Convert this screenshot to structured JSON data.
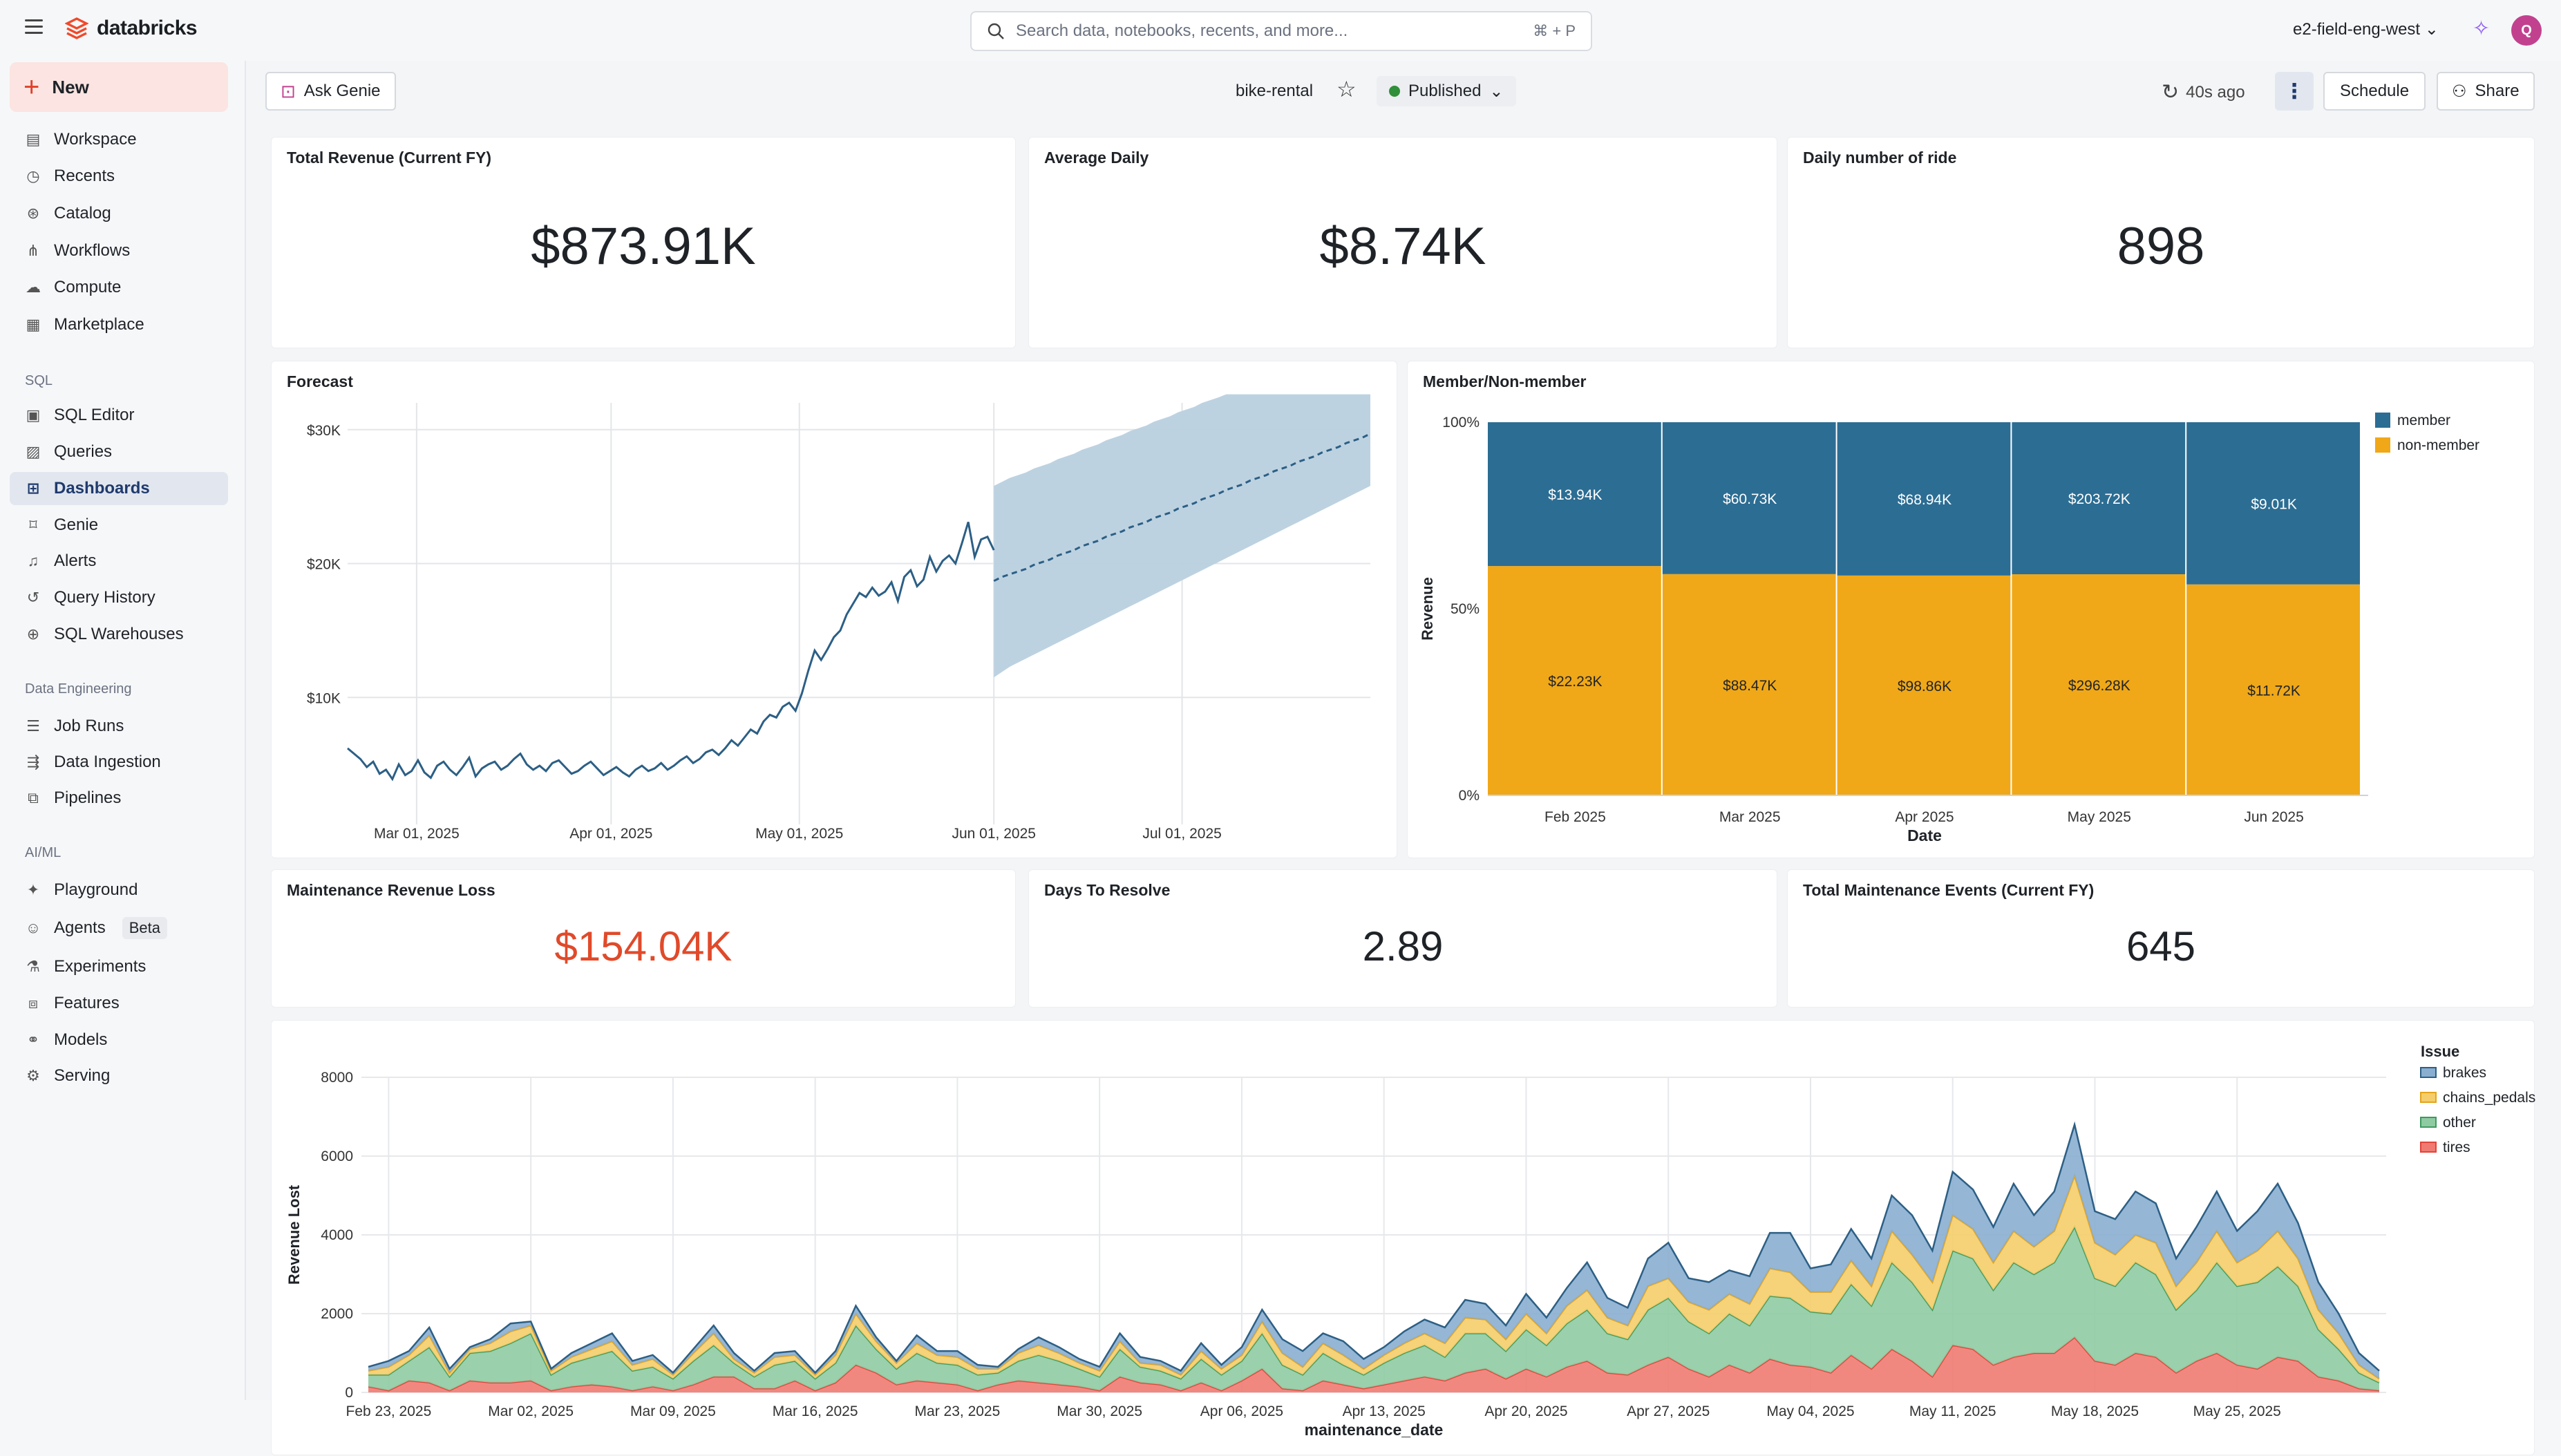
{
  "topbar": {
    "brand": "databricks",
    "search_placeholder": "Search data, notebooks, recents, and more...",
    "search_shortcut": "⌘ + P",
    "workspace": "e2-field-eng-west",
    "avatar_initial": "Q"
  },
  "sidebar": {
    "new_label": "New",
    "items_top": [
      "Workspace",
      "Recents",
      "Catalog",
      "Workflows",
      "Compute",
      "Marketplace"
    ],
    "sql_section": "SQL",
    "items_sql": [
      "SQL Editor",
      "Queries",
      "Dashboards",
      "Genie",
      "Alerts",
      "Query History",
      "SQL Warehouses"
    ],
    "de_section": "Data Engineering",
    "items_de": [
      "Job Runs",
      "Data Ingestion",
      "Pipelines"
    ],
    "ml_section": "AI/ML",
    "items_ml": [
      "Playground",
      "Agents",
      "Experiments",
      "Features",
      "Models",
      "Serving"
    ],
    "beta_badge": "Beta"
  },
  "toolbar": {
    "ask_genie": "Ask Genie",
    "dashboard_name": "bike-rental",
    "status": "Published",
    "refreshed": "40s ago",
    "schedule": "Schedule",
    "share": "Share"
  },
  "kpis": [
    {
      "title": "Total Revenue (Current FY)",
      "value": "$873.91K"
    },
    {
      "title": "Average Daily",
      "value": "$8.74K"
    },
    {
      "title": "Daily number of ride",
      "value": "898"
    },
    {
      "title": "Maintenance Revenue Loss",
      "value": "$154.04K",
      "color": "#e04a2a"
    },
    {
      "title": "Days To Resolve",
      "value": "2.89"
    },
    {
      "title": "Total Maintenance Events (Current FY)",
      "value": "645"
    }
  ],
  "colors": {
    "member": "#2c6d93",
    "nonmember": "#f0a818",
    "forecast_line": "#2c5f85",
    "forecast_band": "#b9d0df",
    "tires": "#f07b72",
    "other": "#8fcba2",
    "chains_pedals": "#f5cd6a",
    "brakes": "#8aaed0"
  },
  "chart_data": [
    {
      "type": "line",
      "title": "Forecast",
      "xlabel": "",
      "ylabel": "",
      "x_ticks": [
        "Mar 01, 2025",
        "Apr 01, 2025",
        "May 01, 2025",
        "Jun 01, 2025",
        "Jul 01, 2025"
      ],
      "y_ticks": [
        "$10K",
        "$20K",
        "$30K"
      ],
      "ylim": [
        0,
        32000
      ],
      "x_start": "2025-02-18",
      "actual": [
        6200,
        5800,
        5400,
        4800,
        5200,
        4300,
        4600,
        3900,
        5000,
        4200,
        4500,
        5300,
        4400,
        4000,
        4900,
        5200,
        4600,
        4200,
        4800,
        5500,
        4100,
        4700,
        5000,
        5200,
        4600,
        4900,
        5400,
        5800,
        5000,
        4600,
        4900,
        4500,
        5100,
        5300,
        4800,
        4300,
        4500,
        4900,
        5200,
        4700,
        4200,
        4500,
        4800,
        4400,
        4100,
        4600,
        4900,
        4500,
        4700,
        5100,
        4600,
        4900,
        5300,
        5600,
        5100,
        5400,
        5900,
        6100,
        5700,
        6200,
        6800,
        6400,
        7000,
        7600,
        7300,
        8200,
        8700,
        8500,
        9300,
        9600,
        9000,
        10300,
        12000,
        13500,
        12800,
        13600,
        14500,
        15000,
        16200,
        17000,
        17800,
        17500,
        18200,
        17600,
        17900,
        18600,
        17200,
        19000,
        19500,
        18300,
        18800,
        20500,
        19400,
        20200,
        20600,
        20000,
        21500,
        23100,
        20500,
        21800,
        22000,
        21000
      ],
      "forecast": {
        "x_start": "2025-06-01",
        "mean": [
          18700,
          19000,
          19200,
          19400,
          19600,
          19900,
          20100,
          20300,
          20600,
          20800,
          21000,
          21300,
          21500,
          21700,
          22000,
          22200,
          22400,
          22700,
          22900,
          23100,
          23400,
          23600,
          23800,
          24100,
          24300,
          24500,
          24800,
          25000,
          25200,
          25500,
          25700,
          25900,
          26200,
          26400,
          26600,
          26900,
          27100,
          27300,
          27600,
          27800,
          28000,
          28300,
          28500,
          28700,
          29000,
          29200,
          29400,
          29700
        ],
        "lower": [
          11500,
          11900,
          12300,
          12600,
          12900,
          13200,
          13500,
          13800,
          14100,
          14400,
          14700,
          15000,
          15300,
          15600,
          15900,
          16200,
          16500,
          16800,
          17100,
          17400,
          17700,
          18000,
          18300,
          18600,
          18900,
          19200,
          19500,
          19800,
          20100,
          20400,
          20700,
          21000,
          21300,
          21600,
          21900,
          22200,
          22500,
          22800,
          23100,
          23400,
          23700,
          24000,
          24300,
          24600,
          24900,
          25200,
          25500,
          25800
        ],
        "upper": [
          25800,
          26100,
          26400,
          26600,
          26800,
          27100,
          27300,
          27500,
          27800,
          28000,
          28200,
          28500,
          28700,
          28900,
          29200,
          29400,
          29600,
          29900,
          30100,
          30300,
          30600,
          30800,
          31000,
          31300,
          31500,
          31700,
          32000,
          32200,
          32400,
          32700,
          32900,
          33100,
          33400,
          33600,
          33800,
          34100,
          34300,
          34500,
          34800,
          35000,
          35200,
          35500,
          35700,
          35900,
          36200,
          36400,
          36600,
          36900
        ]
      }
    },
    {
      "type": "bar",
      "stacked": "normalized",
      "title": "Member/Non-member",
      "xlabel": "Date",
      "ylabel": "Revenue",
      "categories": [
        "Feb 2025",
        "Mar 2025",
        "Apr 2025",
        "May 2025",
        "Jun 2025"
      ],
      "y_ticks": [
        "0%",
        "50%",
        "100%"
      ],
      "series": [
        {
          "name": "member",
          "values": [
            13940,
            60730,
            68940,
            203720,
            9010
          ],
          "labels": [
            "$13.94K",
            "$60.73K",
            "$68.94K",
            "$203.72K",
            "$9.01K"
          ]
        },
        {
          "name": "non-member",
          "values": [
            22230,
            88470,
            98860,
            296280,
            11720
          ],
          "labels": [
            "$22.23K",
            "$88.47K",
            "$98.86K",
            "$296.28K",
            "$11.72K"
          ]
        }
      ],
      "legend_position": "top-right"
    },
    {
      "type": "area",
      "stacked": true,
      "title": "",
      "xlabel": "maintenance_date",
      "ylabel": "Revenue Lost",
      "legend_title": "Issue",
      "x_ticks": [
        "Feb 23, 2025",
        "Mar 02, 2025",
        "Mar 09, 2025",
        "Mar 16, 2025",
        "Mar 23, 2025",
        "Mar 30, 2025",
        "Apr 06, 2025",
        "Apr 13, 2025",
        "Apr 20, 2025",
        "Apr 27, 2025",
        "May 04, 2025",
        "May 11, 2025",
        "May 18, 2025",
        "May 25, 2025"
      ],
      "y_ticks": [
        0,
        2000,
        4000,
        6000,
        8000
      ],
      "ylim": [
        0,
        8000
      ],
      "x_start": "2025-02-22",
      "series": [
        {
          "name": "brakes",
          "values": [
            100,
            150,
            100,
            200,
            100,
            50,
            100,
            200,
            100,
            50,
            100,
            150,
            200,
            100,
            100,
            50,
            100,
            200,
            150,
            50,
            100,
            100,
            50,
            100,
            200,
            100,
            50,
            200,
            100,
            150,
            100,
            50,
            100,
            200,
            150,
            100,
            100,
            200,
            150,
            100,
            100,
            200,
            100,
            200,
            300,
            350,
            400,
            250,
            350,
            250,
            200,
            300,
            350,
            400,
            450,
            400,
            350,
            500,
            400,
            450,
            700,
            500,
            450,
            700,
            900,
            600,
            700,
            600,
            700,
            900,
            1000,
            600,
            700,
            800,
            700,
            900,
            1000,
            800,
            1100,
            1000,
            900,
            1200,
            800,
            1000,
            1300,
            800,
            900,
            1100,
            1000,
            700,
            900,
            1000,
            800,
            1000,
            1200,
            900,
            700,
            500,
            300,
            200
          ]
        },
        {
          "name": "chains_pedals",
          "values": [
            100,
            200,
            150,
            300,
            100,
            100,
            200,
            300,
            200,
            100,
            150,
            200,
            250,
            150,
            200,
            100,
            200,
            300,
            100,
            100,
            200,
            150,
            100,
            200,
            300,
            200,
            150,
            250,
            200,
            200,
            150,
            100,
            200,
            250,
            200,
            150,
            150,
            200,
            100,
            150,
            100,
            200,
            150,
            150,
            300,
            300,
            200,
            250,
            250,
            150,
            200,
            250,
            300,
            350,
            400,
            350,
            300,
            400,
            300,
            450,
            500,
            400,
            350,
            600,
            500,
            500,
            600,
            500,
            550,
            700,
            650,
            500,
            550,
            600,
            500,
            800,
            700,
            700,
            900,
            750,
            700,
            800,
            700,
            800,
            1300,
            900,
            800,
            700,
            800,
            600,
            700,
            800,
            600,
            800,
            900,
            700,
            500,
            400,
            200,
            100
          ]
        },
        {
          "name": "other",
          "values": [
            300,
            400,
            500,
            900,
            350,
            700,
            800,
            1000,
            1200,
            400,
            600,
            700,
            900,
            500,
            500,
            300,
            600,
            800,
            350,
            300,
            600,
            500,
            300,
            500,
            1000,
            600,
            400,
            700,
            500,
            500,
            400,
            300,
            500,
            700,
            600,
            450,
            350,
            700,
            400,
            350,
            300,
            600,
            400,
            500,
            900,
            600,
            400,
            700,
            500,
            350,
            550,
            700,
            800,
            600,
            1000,
            900,
            700,
            1000,
            800,
            1100,
            1300,
            1000,
            900,
            1400,
            1500,
            1200,
            1100,
            1300,
            1200,
            1600,
            1700,
            1400,
            1500,
            1800,
            1600,
            2200,
            2000,
            1700,
            2400,
            2300,
            1900,
            2400,
            2000,
            2300,
            2800,
            2100,
            2000,
            2300,
            2100,
            1600,
            1800,
            2300,
            2000,
            2200,
            2300,
            1900,
            1200,
            800,
            400,
            200
          ]
        },
        {
          "name": "tires",
          "values": [
            150,
            50,
            300,
            250,
            50,
            300,
            250,
            250,
            300,
            50,
            150,
            200,
            150,
            50,
            150,
            50,
            200,
            400,
            400,
            100,
            100,
            300,
            50,
            250,
            700,
            500,
            200,
            300,
            250,
            200,
            50,
            200,
            300,
            250,
            200,
            150,
            50,
            400,
            250,
            200,
            50,
            250,
            50,
            300,
            600,
            100,
            50,
            300,
            200,
            100,
            200,
            300,
            400,
            300,
            500,
            600,
            350,
            600,
            400,
            650,
            800,
            500,
            450,
            700,
            900,
            600,
            400,
            700,
            500,
            850,
            700,
            650,
            500,
            950,
            600,
            1100,
            800,
            400,
            1200,
            1100,
            700,
            900,
            1000,
            1000,
            1400,
            800,
            700,
            1000,
            900,
            500,
            800,
            1000,
            700,
            600,
            900,
            800,
            400,
            300,
            100,
            50
          ]
        }
      ],
      "legend_position": "top-right"
    }
  ]
}
